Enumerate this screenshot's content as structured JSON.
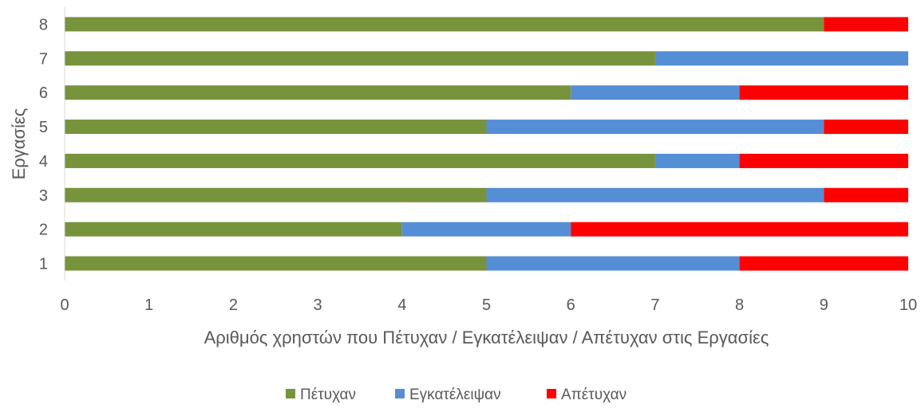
{
  "chart_data": {
    "type": "bar",
    "orientation": "horizontal",
    "stacked": true,
    "categories": [
      "1",
      "2",
      "3",
      "4",
      "5",
      "6",
      "7",
      "8"
    ],
    "series": [
      {
        "name": "Πέτυχαν",
        "color": "#77933C",
        "values": [
          5,
          4,
          5,
          7,
          5,
          6,
          7,
          9
        ]
      },
      {
        "name": "Εγκατέλειψαν",
        "color": "#558ED5",
        "values": [
          3,
          2,
          4,
          1,
          4,
          2,
          3,
          0
        ]
      },
      {
        "name": "Απέτυχαν",
        "color": "#FF0000",
        "values": [
          2,
          4,
          1,
          2,
          1,
          2,
          0,
          1
        ]
      }
    ],
    "xlabel": "Αριθμός χρηστών που Πέτυχαν / Εγκατέλειψαν / Απέτυχαν στις Εργασίες",
    "ylabel": "Εργασίες",
    "xlim": [
      0,
      10
    ],
    "xticks": [
      "0",
      "1",
      "2",
      "3",
      "4",
      "5",
      "6",
      "7",
      "8",
      "9",
      "10"
    ],
    "grid": false,
    "legend_position": "bottom"
  }
}
